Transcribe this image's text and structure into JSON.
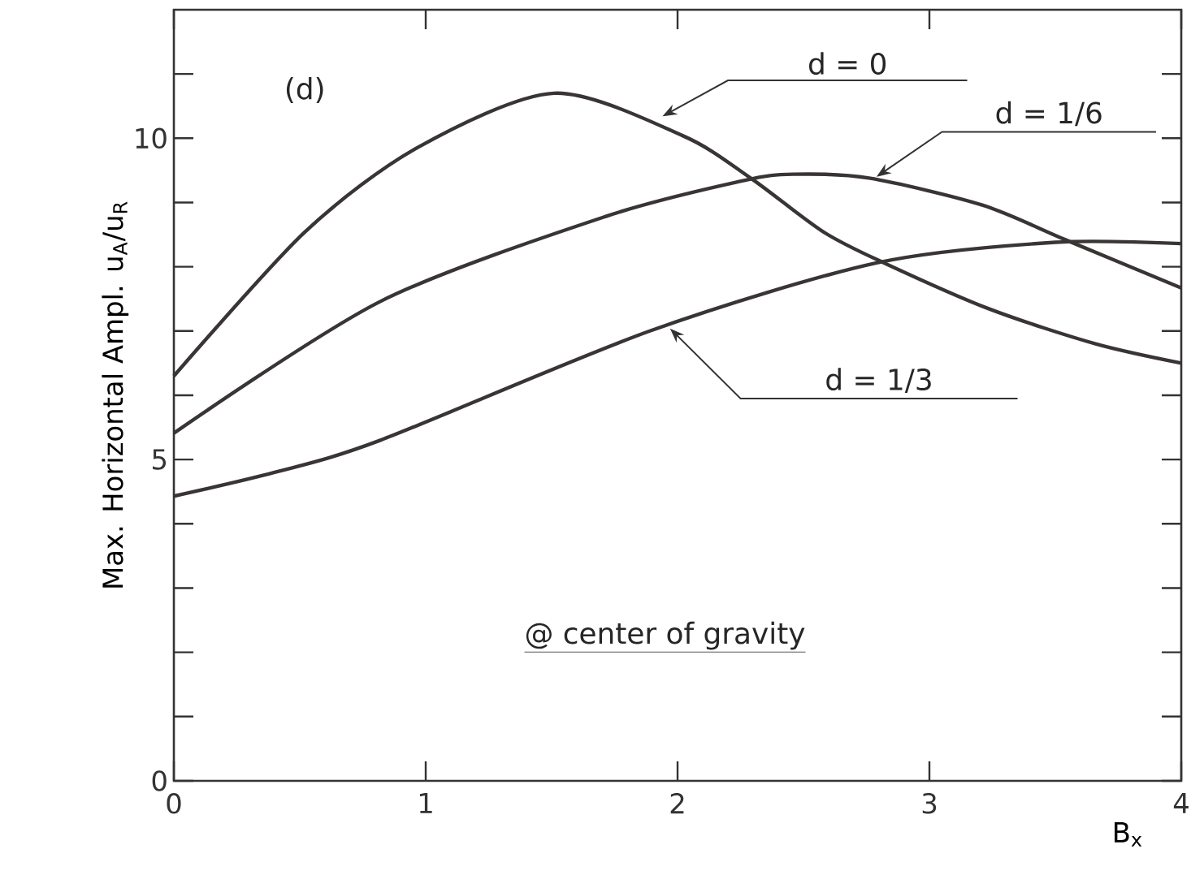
{
  "chart_data": {
    "type": "line",
    "xlabel": "B$_{x}$",
    "ylabel": "Max. Horizontal Ampl.  u$_{A}$/u$_{R}$",
    "xlim": [
      0,
      4
    ],
    "ylim": [
      0,
      12
    ],
    "xticks": [
      0,
      1,
      2,
      3,
      4
    ],
    "yticks": [
      0,
      {
        "value": 1,
        "label": null
      },
      {
        "value": 2,
        "label": null
      },
      {
        "value": 3,
        "label": null
      },
      {
        "value": 4,
        "label": null
      },
      5,
      {
        "value": 6,
        "label": null
      },
      {
        "value": 7,
        "label": null
      },
      {
        "value": 8,
        "label": null
      },
      {
        "value": 9,
        "label": null
      },
      10,
      {
        "value": 11,
        "label": null
      }
    ],
    "grid": false,
    "marker": "none",
    "line_style": "solid",
    "series": [
      {
        "color": "#3a3535",
        "x": [
          0,
          0.52,
          0.97,
          1.51,
          2.02,
          2.29,
          2.58,
          2.82,
          3.24,
          3.66,
          4.0
        ],
        "values": [
          6.3,
          8.54,
          9.86,
          10.7,
          10.04,
          9.38,
          8.54,
          8.06,
          7.34,
          6.8,
          6.5
        ]
      },
      {
        "color": "#3a3535",
        "x": [
          0,
          0.82,
          1.72,
          2.26,
          2.46,
          2.76,
          3.21,
          3.54,
          4.0
        ],
        "values": [
          5.41,
          7.46,
          8.79,
          9.34,
          9.44,
          9.38,
          8.96,
          8.42,
          7.67
        ]
      },
      {
        "color": "#3a3535",
        "x": [
          0,
          0.4,
          0.82,
          1.89,
          2.79,
          3.5,
          4.0
        ],
        "values": [
          4.43,
          4.8,
          5.3,
          7.0,
          8.06,
          8.38,
          8.36
        ]
      }
    ],
    "annotations": [
      "(d)",
      {
        "text": "d = 0",
        "x": 1.94,
        "y": 10.34
      },
      {
        "text": "d = 1/6",
        "x": 2.79,
        "y": 9.4
      },
      {
        "text": "d = 1/3",
        "x": 1.97,
        "y": 7.04
      },
      "@ center of gravity"
    ]
  }
}
